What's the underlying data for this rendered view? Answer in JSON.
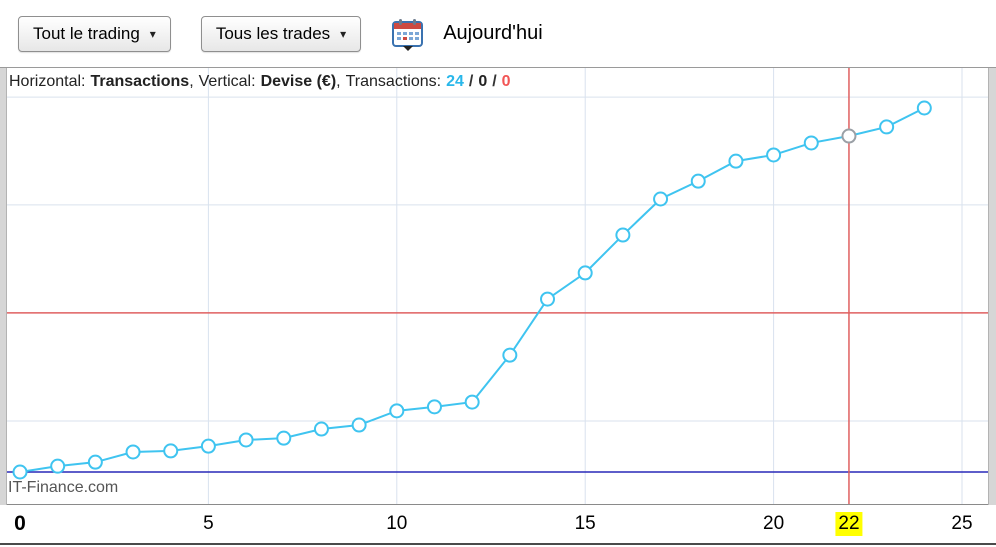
{
  "toolbar": {
    "trading_filter_label": "Tout le trading",
    "trades_filter_label": "Tous les trades",
    "date_label": "Aujourd'hui"
  },
  "chart_header": {
    "h_label": "Horizontal:",
    "h_value": "Transactions",
    "comma": ",",
    "v_label": "Vertical:",
    "v_value": "Devise (€)",
    "t_label": "Transactions:",
    "count_pos": "24",
    "count_neutral": "0",
    "count_neg": "0",
    "slash": "/"
  },
  "watermark": "IT-Finance.com",
  "x_axis": {
    "ticks": [
      {
        "label": "0",
        "unit": 0,
        "emphasis": true,
        "highlight": false
      },
      {
        "label": "5",
        "unit": 5,
        "emphasis": false,
        "highlight": false
      },
      {
        "label": "10",
        "unit": 10,
        "emphasis": false,
        "highlight": false
      },
      {
        "label": "15",
        "unit": 15,
        "emphasis": false,
        "highlight": false
      },
      {
        "label": "20",
        "unit": 20,
        "emphasis": false,
        "highlight": false
      },
      {
        "label": "22",
        "unit": 22,
        "emphasis": false,
        "highlight": true
      },
      {
        "label": "25",
        "unit": 25,
        "emphasis": false,
        "highlight": false
      }
    ]
  },
  "chart_data": {
    "type": "line",
    "title": "",
    "xlabel": "Transactions",
    "ylabel": "Devise (€)",
    "xlim": [
      0,
      25
    ],
    "x": [
      0,
      1,
      2,
      3,
      4,
      5,
      6,
      7,
      8,
      9,
      10,
      11,
      12,
      13,
      14,
      15,
      16,
      17,
      18,
      19,
      20,
      21,
      22,
      23,
      24
    ],
    "values": [
      0,
      1.6,
      2.7,
      5.5,
      5.8,
      7.1,
      8.8,
      9.3,
      11.8,
      12.9,
      16.8,
      17.9,
      19.2,
      32.1,
      47.5,
      54.7,
      65.1,
      75.0,
      79.9,
      85.4,
      87.1,
      90.4,
      92.3,
      94.8,
      100
    ],
    "note": "Vertical axis has no visible labels; values are relative (% of final cumulative value). Cumulative equity curve over 24 transactions.",
    "legend": [],
    "grid": {
      "v_units": [
        5,
        10,
        15,
        20,
        25
      ],
      "h_values": [
        14.0,
        43.7,
        73.4,
        103.0
      ]
    },
    "crosshair": {
      "x": 22,
      "h_value": 43.7
    },
    "colors": {
      "line": "#3fc4f0",
      "marker_fill": "#ffffff",
      "marker_highlight_stroke": "#9aa0a6",
      "crosshair": "#e06060",
      "baseline": "#2929b8",
      "grid": "#d9e2ee",
      "tick_highlight_bg": "#ffff00",
      "header_count_pos": "#29b7ea",
      "header_count_neg": "#f25555"
    }
  }
}
